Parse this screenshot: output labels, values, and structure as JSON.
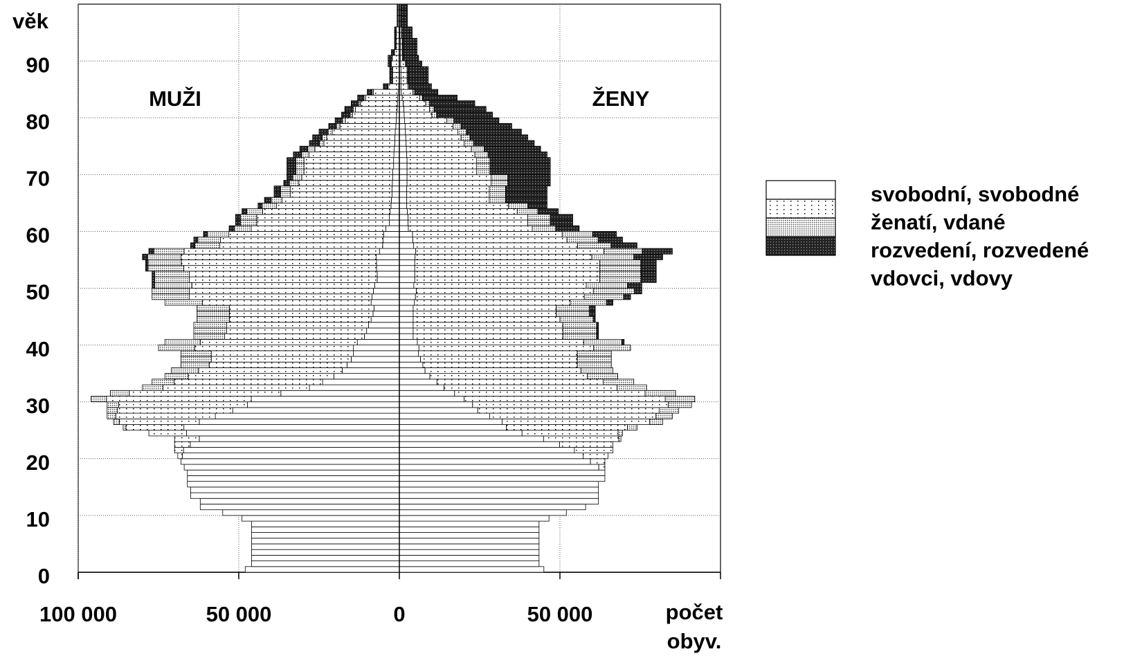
{
  "chart_data": {
    "type": "pyramid",
    "ylabel": "věk",
    "xlabel": "počet obyv.",
    "left_label": "MUŽI",
    "right_label": "ŽENY",
    "ages": [
      0,
      1,
      2,
      3,
      4,
      5,
      6,
      7,
      8,
      9,
      10,
      11,
      12,
      13,
      14,
      15,
      16,
      17,
      18,
      19,
      20,
      21,
      22,
      23,
      24,
      25,
      26,
      27,
      28,
      29,
      30,
      31,
      32,
      33,
      34,
      35,
      36,
      37,
      38,
      39,
      40,
      41,
      42,
      43,
      44,
      45,
      46,
      47,
      48,
      49,
      50,
      51,
      52,
      53,
      54,
      55,
      56,
      57,
      58,
      59,
      60,
      61,
      62,
      63,
      64,
      65,
      66,
      67,
      68,
      69,
      70,
      71,
      72,
      73,
      74,
      75,
      76,
      77,
      78,
      79,
      80,
      81,
      82,
      83,
      84,
      85,
      86,
      87,
      88,
      89,
      90,
      91,
      92,
      93,
      94,
      95,
      96,
      97,
      98,
      99
    ],
    "xlim": [
      -100000,
      100000
    ],
    "xticks": [
      {
        "value": -100000,
        "label": "100 000"
      },
      {
        "value": -50000,
        "label": "50 000"
      },
      0,
      {
        "value": 50000,
        "label": "50 000"
      }
    ],
    "ylim": [
      0,
      100
    ],
    "yticks": [
      0,
      10,
      20,
      30,
      40,
      50,
      60,
      70,
      80,
      90
    ],
    "grid": true,
    "series": [
      {
        "name": "svobodní, svobodné",
        "pattern": "none",
        "men": [
          -48000,
          -46000,
          -46000,
          -46000,
          -46000,
          -46000,
          -46000,
          -46000,
          -46000,
          -49000,
          -55000,
          -62000,
          -62000,
          -65000,
          -65000,
          -66000,
          -66000,
          -66000,
          -67000,
          -68000,
          -67600,
          -67200,
          -65100,
          -62300,
          -66300,
          -67100,
          -62300,
          -57300,
          -51900,
          -47300,
          -46100,
          -36900,
          -28000,
          -23900,
          -20400,
          -17800,
          -16300,
          -15000,
          -14300,
          -14300,
          -13100,
          -10900,
          -10200,
          -9600,
          -8800,
          -8200,
          -7900,
          -8800,
          -8500,
          -8100,
          -7700,
          -6900,
          -6900,
          -7100,
          -7100,
          -7200,
          -6200,
          -5200,
          -5100,
          -4900,
          -4200,
          -3100,
          -3100,
          -2900,
          -2600,
          -2500,
          -2300,
          -2300,
          -2200,
          -2100,
          -2100,
          -1800,
          -1800,
          -1700,
          -1600,
          -1400,
          -1400,
          -1300,
          -1100,
          -1000,
          -900,
          -700,
          -600,
          -500,
          -400,
          -200,
          -100,
          -100,
          -100,
          -100,
          -100,
          -100,
          -100,
          -100,
          -100,
          -100,
          0,
          0,
          0,
          0
        ],
        "women": [
          45000,
          43500,
          43500,
          43500,
          43500,
          43500,
          43500,
          43500,
          43500,
          46600,
          52000,
          58000,
          62000,
          62000,
          62000,
          62000,
          64000,
          64000,
          62100,
          59500,
          57200,
          54500,
          49900,
          44900,
          38200,
          33300,
          32000,
          28100,
          24400,
          22800,
          20200,
          17200,
          13900,
          11700,
          9500,
          8000,
          7300,
          6600,
          5900,
          6100,
          5600,
          4300,
          4300,
          4300,
          4300,
          4300,
          4300,
          4700,
          5000,
          5300,
          4500,
          4800,
          4800,
          4800,
          4800,
          4900,
          5100,
          4400,
          4200,
          4100,
          2800,
          2700,
          2700,
          2500,
          2300,
          2300,
          2300,
          2300,
          2400,
          2400,
          2400,
          2400,
          2400,
          2300,
          2200,
          2100,
          2000,
          1900,
          1800,
          1600,
          1500,
          1400,
          1200,
          900,
          600,
          500,
          500,
          500,
          500,
          400,
          300,
          300,
          300,
          300,
          200,
          200,
          100,
          100,
          100,
          100
        ]
      },
      {
        "name": "ženatí, vdané",
        "pattern": "dots",
        "men": [
          0,
          0,
          0,
          0,
          0,
          0,
          0,
          0,
          0,
          0,
          0,
          0,
          0,
          0,
          0,
          0,
          0,
          0,
          0,
          0,
          -1400,
          -2800,
          -4900,
          -7700,
          -11700,
          -18000,
          -24900,
          -31000,
          -35900,
          -40100,
          -45100,
          -47200,
          -45600,
          -46200,
          -45300,
          -44700,
          -42900,
          -43500,
          -44200,
          -49400,
          -48900,
          -43500,
          -43600,
          -44200,
          -44100,
          -44700,
          -45000,
          -52500,
          -56900,
          -57300,
          -56900,
          -58500,
          -58500,
          -60000,
          -60800,
          -60800,
          -60800,
          -50700,
          -50600,
          -48200,
          -41900,
          -41300,
          -41300,
          -39700,
          -35700,
          -34000,
          -31600,
          -31600,
          -29100,
          -28300,
          -27600,
          -27900,
          -27900,
          -26400,
          -24700,
          -22100,
          -21200,
          -19600,
          -17400,
          -15800,
          -13700,
          -13000,
          -11500,
          -10000,
          -7700,
          -3300,
          -2000,
          -2000,
          -2000,
          -2400,
          -2100,
          -1400,
          -900,
          -900,
          -900,
          -900,
          -400,
          -400,
          -400,
          -400
        ],
        "women": [
          0,
          0,
          0,
          0,
          0,
          0,
          0,
          0,
          0,
          0,
          0,
          0,
          0,
          0,
          0,
          0,
          0,
          0,
          1900,
          4500,
          7800,
          12000,
          16600,
          23400,
          29900,
          37700,
          45900,
          51800,
          56500,
          60900,
          62600,
          59300,
          53900,
          51800,
          49000,
          48500,
          48100,
          48800,
          49500,
          54400,
          51800,
          46600,
          46600,
          46600,
          45700,
          44500,
          44500,
          48500,
          52600,
          55100,
          53700,
          57600,
          57600,
          57600,
          57600,
          55000,
          58600,
          51100,
          48000,
          46600,
          38600,
          37300,
          37300,
          34200,
          31700,
          25700,
          25700,
          25700,
          26200,
          26200,
          21600,
          21600,
          21600,
          21200,
          20200,
          18100,
          17200,
          16300,
          14900,
          13200,
          8600,
          8000,
          7000,
          5400,
          3600,
          2200,
          1900,
          1900,
          1900,
          1500,
          700,
          600,
          600,
          600,
          500,
          500,
          300,
          300,
          300,
          300
        ]
      },
      {
        "name": "rozvedení, rozvedené",
        "pattern": "dense",
        "men": [
          0,
          0,
          0,
          0,
          0,
          0,
          0,
          0,
          0,
          0,
          0,
          0,
          0,
          0,
          0,
          0,
          0,
          0,
          0,
          0,
          0,
          0,
          0,
          0,
          0,
          -900,
          -1800,
          -2700,
          -3200,
          -3600,
          -4800,
          -5900,
          -6400,
          -6900,
          -7300,
          -8500,
          -8800,
          -9500,
          -9500,
          -11300,
          -11000,
          -9600,
          -10200,
          -10200,
          -10100,
          -10100,
          -10100,
          -11700,
          -11600,
          -11600,
          -11600,
          -10800,
          -10800,
          -11100,
          -10300,
          -10400,
          -9400,
          -7800,
          -7000,
          -6700,
          -5300,
          -5100,
          -5100,
          -4900,
          -4400,
          -3400,
          -3100,
          -3100,
          -2900,
          -2800,
          -2500,
          -2500,
          -2500,
          -2300,
          -2200,
          -1400,
          -1400,
          -1300,
          -1100,
          -1000,
          -700,
          -700,
          -600,
          -500,
          -400,
          -200,
          -100,
          -100,
          -100,
          -100,
          -100,
          -100,
          0,
          0,
          0,
          0,
          0,
          0,
          0,
          0
        ],
        "women": [
          0,
          0,
          0,
          0,
          0,
          0,
          0,
          0,
          0,
          0,
          0,
          0,
          0,
          0,
          0,
          0,
          0,
          0,
          0,
          0,
          0,
          0,
          0,
          700,
          1400,
          3000,
          4100,
          5100,
          6100,
          7300,
          9200,
          9500,
          9200,
          9500,
          9500,
          10000,
          10600,
          10600,
          10600,
          11500,
          11900,
          10500,
          10500,
          10500,
          10400,
          10400,
          10400,
          11300,
          12200,
          12800,
          12800,
          12800,
          12800,
          12800,
          12800,
          13100,
          11900,
          10400,
          9700,
          9500,
          7300,
          7000,
          7000,
          6400,
          6000,
          5100,
          5100,
          5100,
          5200,
          5200,
          4200,
          4200,
          4200,
          4100,
          4000,
          2900,
          2800,
          2700,
          2500,
          2200,
          1500,
          1400,
          1200,
          900,
          600,
          300,
          300,
          300,
          300,
          200,
          200,
          200,
          200,
          200,
          100,
          100,
          100,
          100,
          100,
          100
        ]
      },
      {
        "name": "vdovci, vdovy",
        "pattern": "dark",
        "men": [
          0,
          0,
          0,
          0,
          0,
          0,
          0,
          0,
          0,
          0,
          0,
          0,
          0,
          0,
          0,
          0,
          0,
          0,
          0,
          0,
          0,
          0,
          0,
          0,
          0,
          0,
          0,
          0,
          0,
          0,
          0,
          0,
          0,
          0,
          0,
          0,
          0,
          0,
          0,
          0,
          0,
          0,
          0,
          0,
          0,
          0,
          0,
          0,
          0,
          0,
          -800,
          -800,
          -800,
          -800,
          -800,
          -1600,
          -1600,
          -1300,
          -1300,
          -1200,
          -1600,
          -1500,
          -1500,
          -1500,
          -1300,
          -2100,
          -2000,
          -2000,
          -1800,
          -1800,
          -2800,
          -2800,
          -2800,
          -2600,
          -2500,
          -3100,
          -3000,
          -2800,
          -2400,
          -2200,
          -2700,
          -2600,
          -2300,
          -2000,
          -1500,
          -1300,
          -800,
          -800,
          -800,
          -900,
          -1200,
          -900,
          -500,
          -500,
          -500,
          -500,
          -300,
          -300,
          -300,
          -300
        ],
        "women": [
          0,
          0,
          0,
          0,
          0,
          0,
          0,
          0,
          0,
          0,
          0,
          0,
          0,
          0,
          0,
          0,
          0,
          0,
          0,
          0,
          0,
          0,
          0,
          0,
          0,
          0,
          0,
          0,
          0,
          0,
          0,
          0,
          0,
          0,
          0,
          0,
          0,
          0,
          0,
          0,
          700,
          600,
          600,
          600,
          600,
          1800,
          1800,
          2000,
          2200,
          2300,
          4500,
          4800,
          4800,
          4800,
          4800,
          9000,
          9400,
          8100,
          7600,
          7400,
          7300,
          7000,
          7000,
          6400,
          6000,
          12900,
          12900,
          12900,
          13200,
          13200,
          18800,
          18800,
          18800,
          18400,
          17600,
          18900,
          18000,
          17100,
          15800,
          14000,
          17400,
          16200,
          14100,
          10800,
          7200,
          7000,
          6300,
          6300,
          6300,
          4900,
          4800,
          4400,
          4400,
          4400,
          3200,
          3200,
          2000,
          2000,
          2000,
          2000
        ]
      }
    ]
  }
}
